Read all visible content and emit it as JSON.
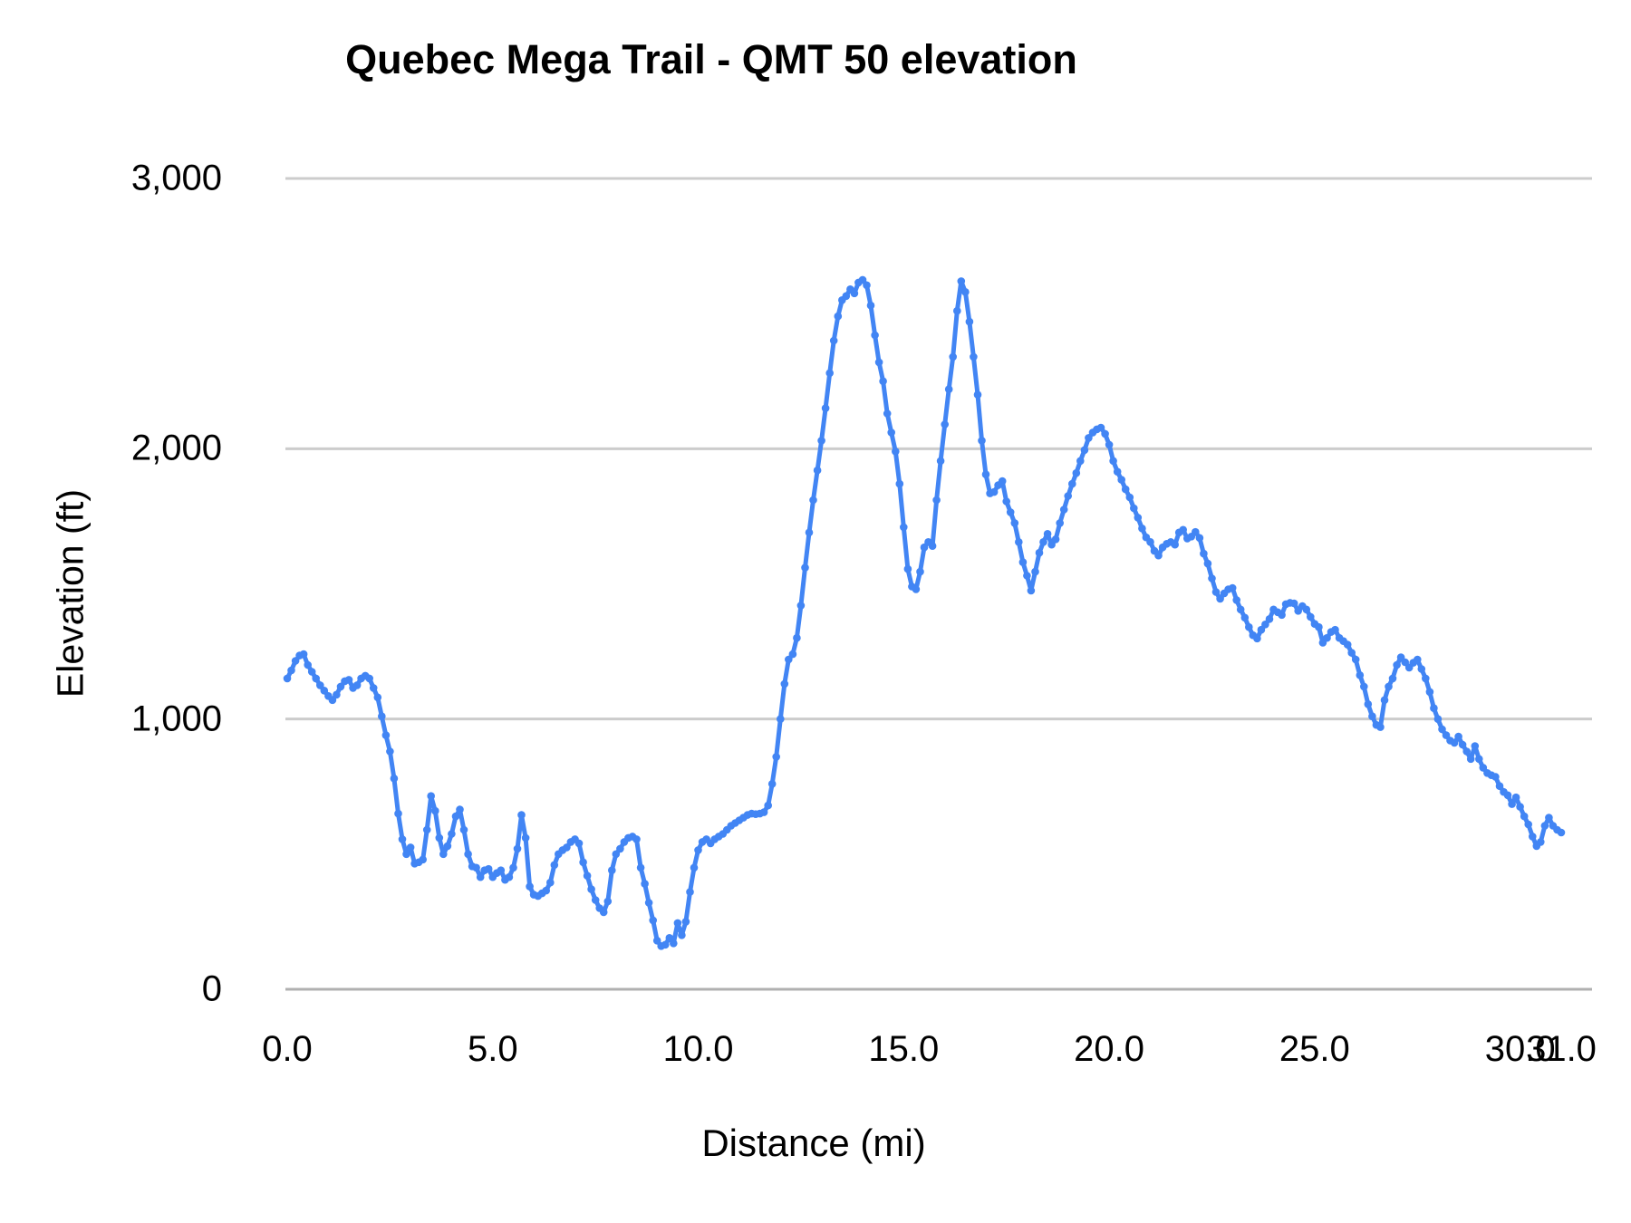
{
  "chart_data": {
    "type": "line",
    "title": "Quebec Mega Trail - QMT 50 elevation",
    "xlabel": "Distance (mi)",
    "ylabel": "Elevation (ft)",
    "xlim": [
      0,
      31
    ],
    "ylim": [
      0,
      3000
    ],
    "grid": true,
    "legend_position": "none",
    "x_ticks": [
      {
        "label": "0.0",
        "value": 0
      },
      {
        "label": "5.0",
        "value": 5
      },
      {
        "label": "10.0",
        "value": 10
      },
      {
        "label": "15.0",
        "value": 15
      },
      {
        "label": "20.0",
        "value": 20
      },
      {
        "label": "25.0",
        "value": 25
      },
      {
        "label": "30.0",
        "value": 30
      },
      {
        "label": "31.0",
        "value": 31
      }
    ],
    "y_ticks": [
      {
        "label": "0",
        "value": 0
      },
      {
        "label": "1,000",
        "value": 1000
      },
      {
        "label": "2,000",
        "value": 2000
      },
      {
        "label": "3,000",
        "value": 3000
      }
    ],
    "series": [
      {
        "name": "Elevation (ft)",
        "color": "#4285f4",
        "marker": "circle",
        "points": [
          [
            0.0,
            1150
          ],
          [
            0.1,
            1180
          ],
          [
            0.2,
            1215
          ],
          [
            0.3,
            1235
          ],
          [
            0.4,
            1240
          ],
          [
            0.5,
            1200
          ],
          [
            0.6,
            1175
          ],
          [
            0.7,
            1150
          ],
          [
            0.8,
            1125
          ],
          [
            0.9,
            1105
          ],
          [
            1.0,
            1085
          ],
          [
            1.1,
            1070
          ],
          [
            1.2,
            1090
          ],
          [
            1.3,
            1120
          ],
          [
            1.4,
            1140
          ],
          [
            1.5,
            1145
          ],
          [
            1.6,
            1115
          ],
          [
            1.7,
            1125
          ],
          [
            1.8,
            1150
          ],
          [
            1.9,
            1160
          ],
          [
            2.0,
            1150
          ],
          [
            2.1,
            1115
          ],
          [
            2.2,
            1080
          ],
          [
            2.3,
            1010
          ],
          [
            2.4,
            940
          ],
          [
            2.5,
            880
          ],
          [
            2.6,
            780
          ],
          [
            2.7,
            650
          ],
          [
            2.8,
            555
          ],
          [
            2.9,
            500
          ],
          [
            3.0,
            525
          ],
          [
            3.1,
            465
          ],
          [
            3.2,
            470
          ],
          [
            3.3,
            480
          ],
          [
            3.4,
            590
          ],
          [
            3.5,
            715
          ],
          [
            3.6,
            660
          ],
          [
            3.7,
            560
          ],
          [
            3.8,
            500
          ],
          [
            3.9,
            530
          ],
          [
            4.0,
            575
          ],
          [
            4.1,
            640
          ],
          [
            4.2,
            665
          ],
          [
            4.3,
            590
          ],
          [
            4.4,
            500
          ],
          [
            4.5,
            455
          ],
          [
            4.6,
            450
          ],
          [
            4.7,
            415
          ],
          [
            4.8,
            440
          ],
          [
            4.9,
            445
          ],
          [
            5.0,
            415
          ],
          [
            5.1,
            430
          ],
          [
            5.2,
            440
          ],
          [
            5.3,
            405
          ],
          [
            5.4,
            415
          ],
          [
            5.5,
            450
          ],
          [
            5.6,
            520
          ],
          [
            5.7,
            645
          ],
          [
            5.8,
            560
          ],
          [
            5.9,
            380
          ],
          [
            6.0,
            350
          ],
          [
            6.1,
            345
          ],
          [
            6.2,
            355
          ],
          [
            6.3,
            365
          ],
          [
            6.4,
            395
          ],
          [
            6.5,
            460
          ],
          [
            6.6,
            500
          ],
          [
            6.7,
            515
          ],
          [
            6.8,
            525
          ],
          [
            6.9,
            545
          ],
          [
            7.0,
            555
          ],
          [
            7.1,
            540
          ],
          [
            7.2,
            470
          ],
          [
            7.3,
            420
          ],
          [
            7.4,
            370
          ],
          [
            7.5,
            330
          ],
          [
            7.6,
            300
          ],
          [
            7.7,
            285
          ],
          [
            7.8,
            325
          ],
          [
            7.9,
            440
          ],
          [
            8.0,
            500
          ],
          [
            8.1,
            520
          ],
          [
            8.2,
            545
          ],
          [
            8.3,
            560
          ],
          [
            8.4,
            565
          ],
          [
            8.5,
            555
          ],
          [
            8.6,
            450
          ],
          [
            8.7,
            390
          ],
          [
            8.8,
            320
          ],
          [
            8.9,
            255
          ],
          [
            9.0,
            180
          ],
          [
            9.1,
            160
          ],
          [
            9.2,
            165
          ],
          [
            9.3,
            190
          ],
          [
            9.4,
            170
          ],
          [
            9.5,
            245
          ],
          [
            9.6,
            200
          ],
          [
            9.7,
            250
          ],
          [
            9.8,
            360
          ],
          [
            9.9,
            450
          ],
          [
            10.0,
            515
          ],
          [
            10.1,
            545
          ],
          [
            10.2,
            555
          ],
          [
            10.3,
            540
          ],
          [
            10.4,
            555
          ],
          [
            10.5,
            565
          ],
          [
            10.6,
            575
          ],
          [
            10.7,
            590
          ],
          [
            10.8,
            605
          ],
          [
            10.9,
            615
          ],
          [
            11.0,
            625
          ],
          [
            11.1,
            635
          ],
          [
            11.2,
            645
          ],
          [
            11.3,
            650
          ],
          [
            11.4,
            648
          ],
          [
            11.5,
            650
          ],
          [
            11.6,
            655
          ],
          [
            11.7,
            680
          ],
          [
            11.8,
            760
          ],
          [
            11.9,
            860
          ],
          [
            12.0,
            1000
          ],
          [
            12.1,
            1130
          ],
          [
            12.2,
            1220
          ],
          [
            12.3,
            1240
          ],
          [
            12.4,
            1300
          ],
          [
            12.5,
            1420
          ],
          [
            12.6,
            1560
          ],
          [
            12.7,
            1690
          ],
          [
            12.8,
            1810
          ],
          [
            12.9,
            1920
          ],
          [
            13.0,
            2030
          ],
          [
            13.1,
            2150
          ],
          [
            13.2,
            2280
          ],
          [
            13.3,
            2400
          ],
          [
            13.4,
            2490
          ],
          [
            13.5,
            2550
          ],
          [
            13.6,
            2565
          ],
          [
            13.7,
            2590
          ],
          [
            13.8,
            2575
          ],
          [
            13.9,
            2615
          ],
          [
            14.0,
            2625
          ],
          [
            14.1,
            2605
          ],
          [
            14.2,
            2530
          ],
          [
            14.3,
            2420
          ],
          [
            14.4,
            2320
          ],
          [
            14.5,
            2250
          ],
          [
            14.6,
            2130
          ],
          [
            14.7,
            2060
          ],
          [
            14.8,
            1990
          ],
          [
            14.9,
            1870
          ],
          [
            15.0,
            1710
          ],
          [
            15.1,
            1555
          ],
          [
            15.2,
            1490
          ],
          [
            15.3,
            1480
          ],
          [
            15.4,
            1545
          ],
          [
            15.5,
            1635
          ],
          [
            15.6,
            1655
          ],
          [
            15.7,
            1640
          ],
          [
            15.8,
            1810
          ],
          [
            15.9,
            1955
          ],
          [
            16.0,
            2090
          ],
          [
            16.1,
            2220
          ],
          [
            16.2,
            2340
          ],
          [
            16.3,
            2510
          ],
          [
            16.4,
            2620
          ],
          [
            16.5,
            2580
          ],
          [
            16.6,
            2470
          ],
          [
            16.7,
            2340
          ],
          [
            16.8,
            2200
          ],
          [
            16.9,
            2030
          ],
          [
            17.0,
            1905
          ],
          [
            17.1,
            1835
          ],
          [
            17.2,
            1840
          ],
          [
            17.3,
            1865
          ],
          [
            17.4,
            1880
          ],
          [
            17.5,
            1805
          ],
          [
            17.6,
            1765
          ],
          [
            17.7,
            1725
          ],
          [
            17.8,
            1655
          ],
          [
            17.9,
            1580
          ],
          [
            18.0,
            1530
          ],
          [
            18.1,
            1475
          ],
          [
            18.2,
            1545
          ],
          [
            18.3,
            1615
          ],
          [
            18.4,
            1655
          ],
          [
            18.5,
            1685
          ],
          [
            18.6,
            1645
          ],
          [
            18.7,
            1665
          ],
          [
            18.8,
            1725
          ],
          [
            18.9,
            1775
          ],
          [
            19.0,
            1825
          ],
          [
            19.1,
            1870
          ],
          [
            19.2,
            1910
          ],
          [
            19.3,
            1955
          ],
          [
            19.4,
            1995
          ],
          [
            19.5,
            2040
          ],
          [
            19.6,
            2060
          ],
          [
            19.7,
            2072
          ],
          [
            19.8,
            2078
          ],
          [
            19.9,
            2055
          ],
          [
            20.0,
            2015
          ],
          [
            20.1,
            1955
          ],
          [
            20.2,
            1915
          ],
          [
            20.3,
            1885
          ],
          [
            20.4,
            1850
          ],
          [
            20.5,
            1820
          ],
          [
            20.6,
            1780
          ],
          [
            20.7,
            1745
          ],
          [
            20.8,
            1705
          ],
          [
            20.9,
            1672
          ],
          [
            21.0,
            1655
          ],
          [
            21.1,
            1622
          ],
          [
            21.2,
            1605
          ],
          [
            21.3,
            1635
          ],
          [
            21.4,
            1648
          ],
          [
            21.5,
            1655
          ],
          [
            21.6,
            1645
          ],
          [
            21.7,
            1690
          ],
          [
            21.8,
            1700
          ],
          [
            21.9,
            1668
          ],
          [
            22.0,
            1675
          ],
          [
            22.1,
            1692
          ],
          [
            22.2,
            1670
          ],
          [
            22.3,
            1612
          ],
          [
            22.4,
            1575
          ],
          [
            22.5,
            1520
          ],
          [
            22.6,
            1470
          ],
          [
            22.7,
            1445
          ],
          [
            22.8,
            1465
          ],
          [
            22.9,
            1480
          ],
          [
            23.0,
            1485
          ],
          [
            23.1,
            1440
          ],
          [
            23.2,
            1405
          ],
          [
            23.3,
            1375
          ],
          [
            23.4,
            1340
          ],
          [
            23.5,
            1310
          ],
          [
            23.6,
            1298
          ],
          [
            23.7,
            1330
          ],
          [
            23.8,
            1350
          ],
          [
            23.9,
            1370
          ],
          [
            24.0,
            1405
          ],
          [
            24.1,
            1395
          ],
          [
            24.2,
            1385
          ],
          [
            24.3,
            1425
          ],
          [
            24.4,
            1430
          ],
          [
            24.5,
            1428
          ],
          [
            24.6,
            1400
          ],
          [
            24.7,
            1418
          ],
          [
            24.8,
            1405
          ],
          [
            24.9,
            1378
          ],
          [
            25.0,
            1352
          ],
          [
            25.1,
            1340
          ],
          [
            25.2,
            1282
          ],
          [
            25.3,
            1300
          ],
          [
            25.4,
            1322
          ],
          [
            25.5,
            1330
          ],
          [
            25.6,
            1300
          ],
          [
            25.7,
            1288
          ],
          [
            25.8,
            1275
          ],
          [
            25.9,
            1245
          ],
          [
            26.0,
            1220
          ],
          [
            26.1,
            1162
          ],
          [
            26.2,
            1120
          ],
          [
            26.3,
            1055
          ],
          [
            26.4,
            1010
          ],
          [
            26.5,
            978
          ],
          [
            26.6,
            970
          ],
          [
            26.7,
            1070
          ],
          [
            26.8,
            1120
          ],
          [
            26.9,
            1150
          ],
          [
            27.0,
            1200
          ],
          [
            27.1,
            1228
          ],
          [
            27.2,
            1210
          ],
          [
            27.3,
            1190
          ],
          [
            27.4,
            1208
          ],
          [
            27.5,
            1220
          ],
          [
            27.6,
            1185
          ],
          [
            27.7,
            1150
          ],
          [
            27.8,
            1100
          ],
          [
            27.9,
            1040
          ],
          [
            28.0,
            1000
          ],
          [
            28.1,
            962
          ],
          [
            28.2,
            940
          ],
          [
            28.3,
            920
          ],
          [
            28.4,
            912
          ],
          [
            28.5,
            935
          ],
          [
            28.6,
            905
          ],
          [
            28.7,
            880
          ],
          [
            28.8,
            852
          ],
          [
            28.9,
            900
          ],
          [
            29.0,
            852
          ],
          [
            29.1,
            820
          ],
          [
            29.2,
            800
          ],
          [
            29.3,
            792
          ],
          [
            29.4,
            786
          ],
          [
            29.5,
            752
          ],
          [
            29.6,
            730
          ],
          [
            29.7,
            718
          ],
          [
            29.8,
            685
          ],
          [
            29.9,
            710
          ],
          [
            30.0,
            675
          ],
          [
            30.1,
            640
          ],
          [
            30.2,
            610
          ],
          [
            30.3,
            565
          ],
          [
            30.4,
            530
          ],
          [
            30.5,
            545
          ],
          [
            30.6,
            605
          ],
          [
            30.7,
            635
          ],
          [
            30.8,
            605
          ],
          [
            30.9,
            590
          ],
          [
            31.0,
            580
          ]
        ]
      }
    ],
    "colors": {
      "series_blue": "#4285f4",
      "gridline": "#cccccc",
      "baseline": "#b0b0b0",
      "text": "#000000",
      "background": "#ffffff"
    }
  }
}
